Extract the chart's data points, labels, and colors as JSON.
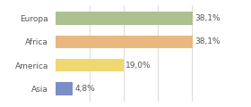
{
  "categories": [
    "Europa",
    "Africa",
    "America",
    "Asia"
  ],
  "values": [
    38.1,
    38.1,
    19.0,
    4.8
  ],
  "labels": [
    "38,1%",
    "38,1%",
    "19,0%",
    "4,8%"
  ],
  "colors": [
    "#adc090",
    "#e8b87e",
    "#f0d870",
    "#7b8ec8"
  ],
  "background_color": "#ffffff",
  "xlim": [
    0,
    46
  ],
  "bar_height": 0.55,
  "figsize": [
    2.8,
    1.2
  ],
  "dpi": 100,
  "label_fontsize": 6.5,
  "category_fontsize": 6.5,
  "label_color": "#555555",
  "category_color": "#555555"
}
